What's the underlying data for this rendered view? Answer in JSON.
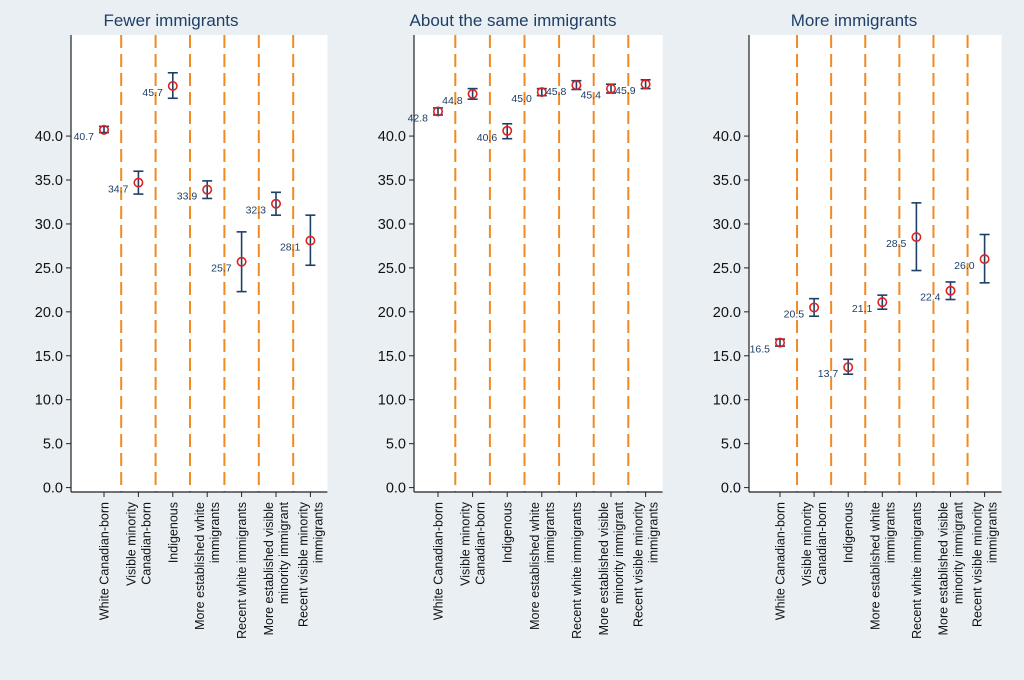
{
  "chart_data": [
    {
      "type": "scatter",
      "title": "Fewer immigrants",
      "categories": [
        [
          "White Canadian-born"
        ],
        [
          "Visible minority",
          "Canadian-born"
        ],
        [
          "Indigenous"
        ],
        [
          "More established white",
          "immigrants"
        ],
        [
          "Recent white immigrants"
        ],
        [
          "More established visible",
          "minority immigrant"
        ],
        [
          "Recent visible minority",
          "immigrants"
        ]
      ],
      "values": [
        40.7,
        34.7,
        45.7,
        33.9,
        25.7,
        32.3,
        28.1
      ],
      "value_labels": [
        "40.7",
        "34.7",
        "45.7",
        "33.9",
        "25.7",
        "32.3",
        "28.1"
      ],
      "ci_low": [
        40.4,
        33.4,
        44.3,
        32.9,
        22.3,
        31.0,
        25.3
      ],
      "ci_high": [
        41.1,
        36.0,
        47.2,
        34.9,
        29.1,
        33.6,
        31.0
      ],
      "y_ticks": [
        "0.0",
        "5.0",
        "10.0",
        "15.0",
        "20.0",
        "25.0",
        "30.0",
        "35.0",
        "40.0"
      ],
      "ylim": [
        -0.5,
        51.5
      ]
    },
    {
      "type": "scatter",
      "title": "About the same immigrants",
      "categories": [
        [
          "White Canadian-born"
        ],
        [
          "Visible minority",
          "Canadian-born"
        ],
        [
          "Indigenous"
        ],
        [
          "More established white",
          "immigrants"
        ],
        [
          "Recent white immigrants"
        ],
        [
          "More established visible",
          "minority immigrant"
        ],
        [
          "Recent visible minority",
          "immigrants"
        ]
      ],
      "values": [
        42.8,
        44.8,
        40.6,
        45.0,
        45.8,
        45.4,
        45.9
      ],
      "value_labels": [
        "42.8",
        "44.8",
        "40.6",
        "45.0",
        "45.8",
        "45.4",
        "45.9"
      ],
      "ci_low": [
        42.4,
        44.2,
        39.7,
        44.6,
        45.3,
        44.9,
        45.4
      ],
      "ci_high": [
        43.2,
        45.4,
        41.4,
        45.4,
        46.3,
        45.9,
        46.4
      ],
      "y_ticks": [
        "0.0",
        "5.0",
        "10.0",
        "15.0",
        "20.0",
        "25.0",
        "30.0",
        "35.0",
        "40.0"
      ],
      "ylim": [
        -0.5,
        51.5
      ]
    },
    {
      "type": "scatter",
      "title": "More immigrants",
      "categories": [
        [
          "White Canadian-born"
        ],
        [
          "Visible minority",
          "Canadian-born"
        ],
        [
          "Indigenous"
        ],
        [
          "More established white",
          "immigrants"
        ],
        [
          "Recent white immigrants"
        ],
        [
          "More established visible",
          "minority immigrant"
        ],
        [
          "Recent visible minority",
          "immigrants"
        ]
      ],
      "values": [
        16.5,
        20.5,
        13.7,
        21.1,
        28.5,
        22.4,
        26.0
      ],
      "value_labels": [
        "16.5",
        "20.5",
        "13.7",
        "21.1",
        "28.5",
        "22.4",
        "26.0"
      ],
      "ci_low": [
        16.1,
        19.5,
        12.9,
        20.3,
        24.7,
        21.4,
        23.3
      ],
      "ci_high": [
        16.9,
        21.5,
        14.6,
        21.9,
        32.4,
        23.4,
        28.8
      ],
      "y_ticks": [
        "0.0",
        "5.0",
        "10.0",
        "15.0",
        "20.0",
        "25.0",
        "30.0",
        "35.0",
        "40.0"
      ],
      "ylim": [
        -0.5,
        51.5
      ]
    }
  ],
  "colors": {
    "background": "#e9eff3",
    "plot_area": "#ffffff",
    "title": "#1e3f66",
    "marker": "#e02020",
    "ci": "#1e3f66",
    "separator": "#f08a24",
    "axis": "#222222"
  }
}
